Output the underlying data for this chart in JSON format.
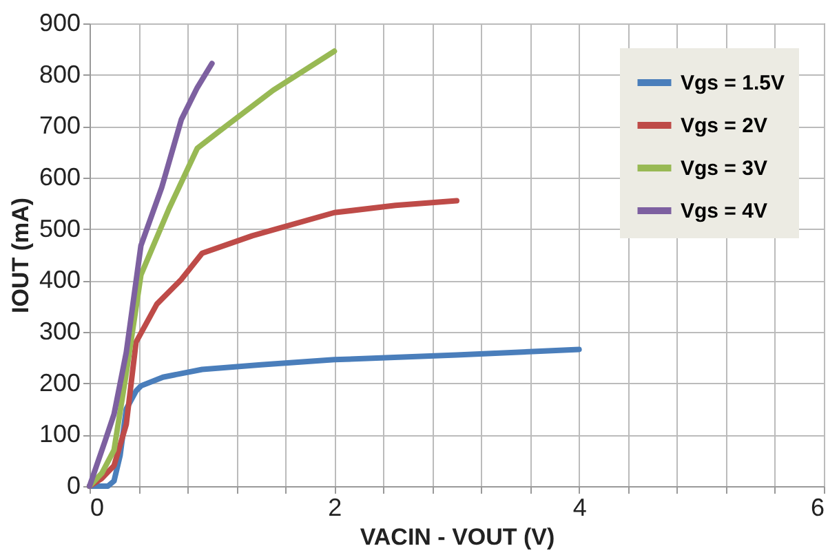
{
  "chart_data": {
    "type": "line",
    "xlabel": "VACIN - VOUT (V)",
    "ylabel": "IOUT (mA)",
    "xlim": [
      0,
      6
    ],
    "ylim": [
      0,
      900
    ],
    "xticks": [
      0,
      {
        "value": 0.4,
        "label": null
      },
      {
        "value": 0.8,
        "label": null
      },
      {
        "value": 1.2,
        "label": null
      },
      {
        "value": 1.6,
        "label": null
      },
      2,
      {
        "value": 2.4,
        "label": null
      },
      {
        "value": 2.8,
        "label": null
      },
      {
        "value": 3.2,
        "label": null
      },
      {
        "value": 3.6,
        "label": null
      },
      4,
      {
        "value": 4.4,
        "label": null
      },
      {
        "value": 4.8,
        "label": null
      },
      {
        "value": 5.2,
        "label": null
      },
      {
        "value": 5.6,
        "label": null
      },
      6
    ],
    "yticks": [
      0,
      100,
      200,
      300,
      400,
      500,
      600,
      700,
      800,
      900
    ],
    "grid": true,
    "legend": "top right",
    "line_style": "solid",
    "marker": "none",
    "series": [
      {
        "name": "Vgs = 1.5V",
        "color": "#4a7ebb",
        "x": [
          0,
          0.15,
          0.2,
          0.25,
          0.3,
          0.38,
          0.42,
          0.6,
          0.92,
          1.4,
          2.0,
          3.0,
          4.0
        ],
        "values": [
          0,
          0,
          10,
          60,
          150,
          185,
          195,
          212,
          227,
          236,
          246,
          255,
          266
        ]
      },
      {
        "name": "Vgs = 2V",
        "color": "#be4b48",
        "x": [
          0,
          0.1,
          0.2,
          0.3,
          0.38,
          0.55,
          0.75,
          0.92,
          1.33,
          2.0,
          2.5,
          3.0
        ],
        "values": [
          0,
          15,
          40,
          120,
          280,
          354,
          402,
          453,
          487,
          532,
          546,
          555
        ]
      },
      {
        "name": "Vgs = 3V",
        "color": "#98b954",
        "x": [
          0,
          0.1,
          0.2,
          0.3,
          0.42,
          0.65,
          0.88,
          1.08,
          1.5,
          2.0
        ],
        "values": [
          0,
          25,
          70,
          220,
          411,
          540,
          657,
          694,
          770,
          846
        ]
      },
      {
        "name": "Vgs = 4V",
        "color": "#7d60a0",
        "x": [
          0,
          0.13,
          0.2,
          0.3,
          0.42,
          0.59,
          0.75,
          0.88,
          1.0
        ],
        "values": [
          0,
          90,
          140,
          260,
          468,
          581,
          713,
          775,
          822
        ]
      }
    ]
  }
}
